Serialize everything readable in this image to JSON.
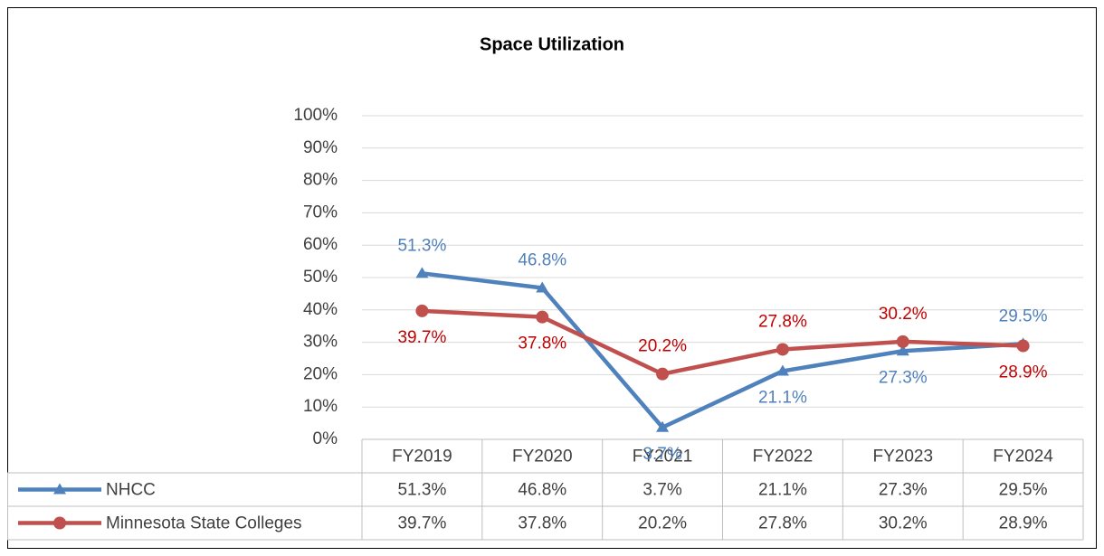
{
  "chart_data": {
    "type": "line",
    "title": "Space Utilization",
    "categories": [
      "FY2019",
      "FY2020",
      "FY2021",
      "FY2022",
      "FY2023",
      "FY2024"
    ],
    "series": [
      {
        "name": "NHCC",
        "color": "#4f81bd",
        "label_color": "#4f81bd",
        "marker": "triangle",
        "values": [
          51.3,
          46.8,
          3.7,
          21.1,
          27.3,
          29.5
        ],
        "value_labels": [
          "51.3%",
          "46.8%",
          "3.7%",
          "21.1%",
          "27.3%",
          "29.5%"
        ]
      },
      {
        "name": "Minnesota State Colleges",
        "color": "#c0504d",
        "label_color": "#c00000",
        "marker": "circle",
        "values": [
          39.7,
          37.8,
          20.2,
          27.8,
          30.2,
          28.9
        ],
        "value_labels": [
          "39.7%",
          "37.8%",
          "20.2%",
          "27.8%",
          "30.2%",
          "28.9%"
        ]
      }
    ],
    "ylim": [
      0,
      100
    ],
    "yticks": [
      {
        "value": 0,
        "label": "0%"
      },
      {
        "value": 10,
        "label": "10%"
      },
      {
        "value": 20,
        "label": "20%"
      },
      {
        "value": 30,
        "label": "30%"
      },
      {
        "value": 40,
        "label": "40%"
      },
      {
        "value": 50,
        "label": "50%"
      },
      {
        "value": 60,
        "label": "60%"
      },
      {
        "value": 70,
        "label": "70%"
      },
      {
        "value": 80,
        "label": "80%"
      },
      {
        "value": 90,
        "label": "90%"
      },
      {
        "value": 100,
        "label": "100%"
      }
    ],
    "grid": true,
    "data_table": true
  }
}
